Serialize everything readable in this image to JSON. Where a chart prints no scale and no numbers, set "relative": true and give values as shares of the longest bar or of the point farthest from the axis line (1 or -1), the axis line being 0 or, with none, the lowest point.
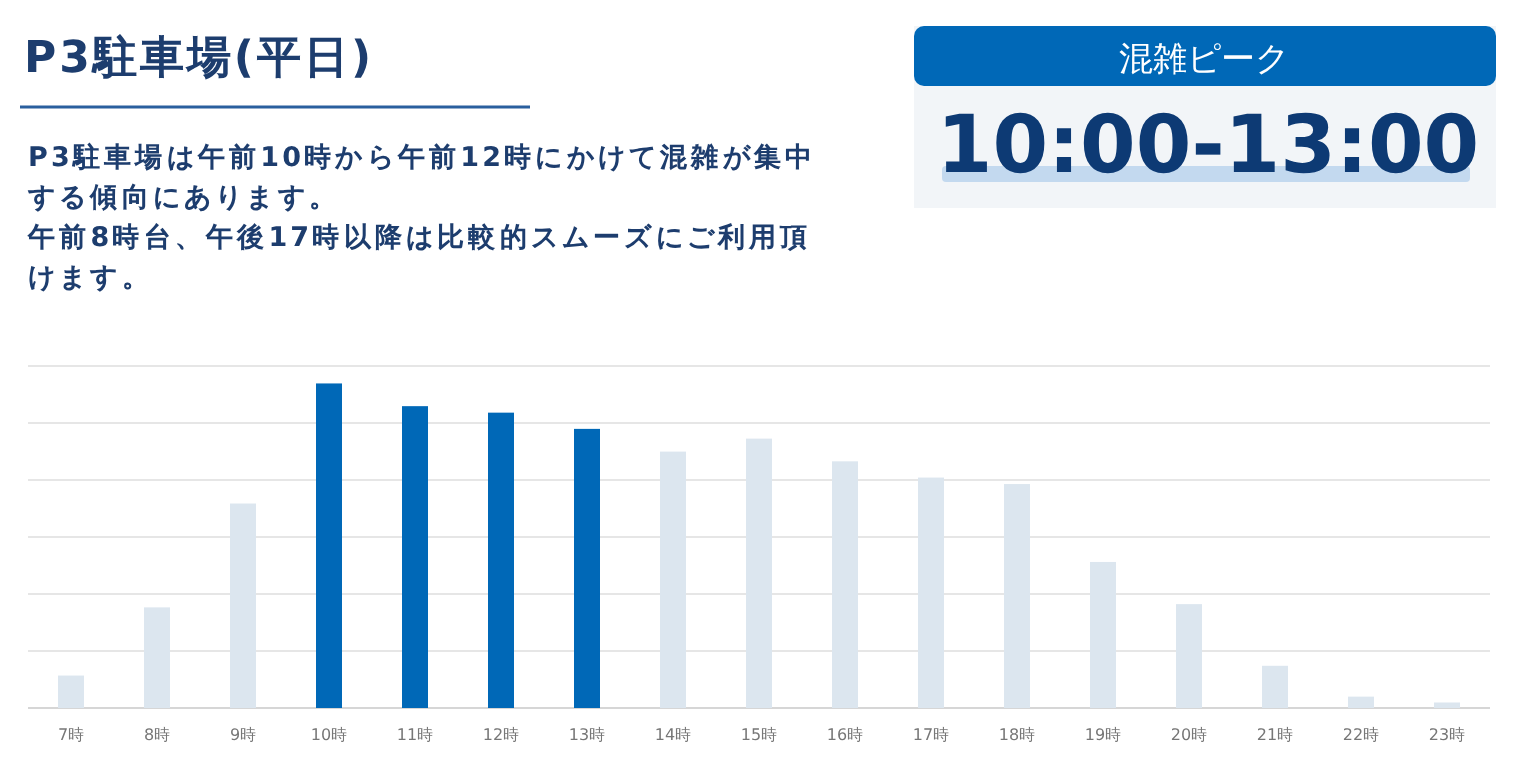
{
  "chart_data": {
    "type": "bar",
    "title": "P3駐車場(平日)",
    "subtitle": "P3駐車場は午前10時から午前12時にかけて混雑が集中する傾向にあります。午前8時台、午後17時以降は比較的スムーズにご利用頂けます。",
    "annotations": [
      "混雑ピーク",
      "10:00-13:00"
    ],
    "categories": [
      "7時",
      "8時",
      "9時",
      "10時",
      "11時",
      "12時",
      "13時",
      "14時",
      "15時",
      "16時",
      "17時",
      "18時",
      "19時",
      "20時",
      "21時",
      "22時",
      "23時"
    ],
    "values": [
      0.1,
      0.31,
      0.63,
      1,
      0.93,
      0.91,
      0.86,
      0.79,
      0.83,
      0.76,
      0.71,
      0.69,
      0.45,
      0.32,
      0.13,
      0.035,
      0.017
    ],
    "colors": [
      "#dce6ef",
      "#dce6ef",
      "#dce6ef",
      "#0068b7",
      "#0068b7",
      "#0068b7",
      "#0068b7",
      "#dce6ef",
      "#dce6ef",
      "#dce6ef",
      "#dce6ef",
      "#dce6ef",
      "#dce6ef",
      "#dce6ef",
      "#dce6ef",
      "#dce6ef",
      "#dce6ef"
    ],
    "relative": true,
    "grid": "y"
  }
}
